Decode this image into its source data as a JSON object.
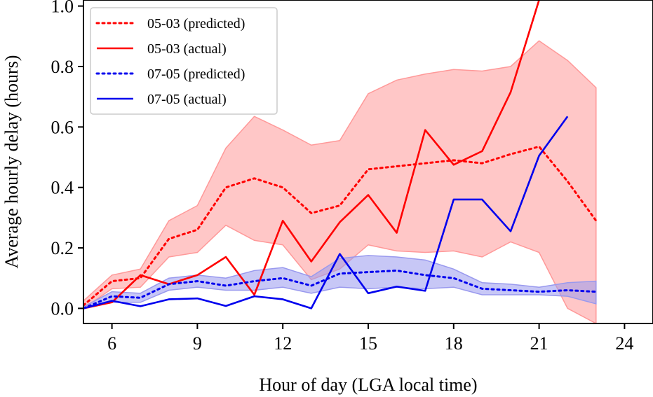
{
  "chart_data": {
    "type": "line",
    "xlabel": "Hour of day (LGA local time)",
    "ylabel": "Average hourly delay (hours)",
    "xlim": [
      5,
      25
    ],
    "ylim": [
      -0.05,
      1.02
    ],
    "xticks": [
      6,
      9,
      12,
      15,
      18,
      21,
      24
    ],
    "yticks": [
      0.0,
      0.2,
      0.4,
      0.6,
      0.8,
      1.0
    ],
    "ytick_labels": [
      "0.0",
      "0.2",
      "0.4",
      "0.6",
      "0.8",
      "1.0"
    ],
    "grid": false,
    "legend_position": "top-left",
    "series": [
      {
        "name": "05-03 (predicted)",
        "color": "#ff0000",
        "style": "dotted",
        "x": [
          5,
          6,
          7,
          8,
          9,
          10,
          11,
          12,
          13,
          14,
          15,
          16,
          17,
          18,
          19,
          20,
          21,
          22,
          23
        ],
        "values": [
          0.01,
          0.09,
          0.1,
          0.23,
          0.26,
          0.4,
          0.43,
          0.4,
          0.315,
          0.34,
          0.46,
          0.47,
          0.48,
          0.49,
          0.48,
          0.51,
          0.535,
          0.42,
          0.29
        ],
        "band_upper": [
          0.025,
          0.11,
          0.13,
          0.29,
          0.34,
          0.53,
          0.635,
          0.59,
          0.54,
          0.555,
          0.71,
          0.755,
          0.775,
          0.79,
          0.785,
          0.8,
          0.885,
          0.82,
          0.73
        ],
        "band_lower": [
          0.0,
          0.065,
          0.07,
          0.17,
          0.185,
          0.275,
          0.225,
          0.21,
          0.095,
          0.13,
          0.21,
          0.19,
          0.185,
          0.19,
          0.17,
          0.22,
          0.185,
          0.0,
          -0.05
        ],
        "band_color": "#ff9999"
      },
      {
        "name": "05-03 (actual)",
        "color": "#ff0000",
        "style": "solid",
        "x": [
          5,
          6,
          7,
          8,
          9,
          10,
          11,
          12,
          13,
          14,
          15,
          16,
          17,
          18,
          19,
          20,
          21,
          21.2
        ],
        "values": [
          0.0,
          0.02,
          0.11,
          0.08,
          0.11,
          0.17,
          0.045,
          0.29,
          0.155,
          0.285,
          0.375,
          0.25,
          0.59,
          0.475,
          0.52,
          0.715,
          1.02,
          1.05
        ]
      },
      {
        "name": "07-05 (predicted)",
        "color": "#0000ee",
        "style": "dotted",
        "x": [
          5,
          6,
          7,
          8,
          9,
          10,
          11,
          12,
          13,
          14,
          15,
          16,
          17,
          18,
          19,
          20,
          21,
          22,
          23
        ],
        "values": [
          0.0,
          0.04,
          0.035,
          0.08,
          0.09,
          0.075,
          0.09,
          0.1,
          0.075,
          0.115,
          0.12,
          0.125,
          0.11,
          0.1,
          0.065,
          0.06,
          0.055,
          0.06,
          0.055
        ],
        "band_upper": [
          0.005,
          0.055,
          0.05,
          0.1,
          0.11,
          0.1,
          0.125,
          0.135,
          0.105,
          0.165,
          0.175,
          0.17,
          0.16,
          0.13,
          0.085,
          0.08,
          0.07,
          0.085,
          0.09
        ],
        "band_lower": [
          0.0,
          0.02,
          0.02,
          0.06,
          0.07,
          0.06,
          0.06,
          0.07,
          0.05,
          0.07,
          0.065,
          0.07,
          0.065,
          0.07,
          0.045,
          0.045,
          0.045,
          0.04,
          0.015
        ],
        "band_color": "#9999ee"
      },
      {
        "name": "07-05 (actual)",
        "color": "#0000ee",
        "style": "solid",
        "x": [
          5,
          6,
          7,
          8,
          9,
          10,
          11,
          12,
          13,
          14,
          15,
          16,
          17,
          18,
          19,
          20,
          21,
          22
        ],
        "values": [
          0.0,
          0.025,
          0.007,
          0.03,
          0.033,
          0.008,
          0.04,
          0.03,
          0.0,
          0.18,
          0.05,
          0.072,
          0.058,
          0.36,
          0.36,
          0.255,
          0.505,
          0.635
        ]
      }
    ]
  }
}
